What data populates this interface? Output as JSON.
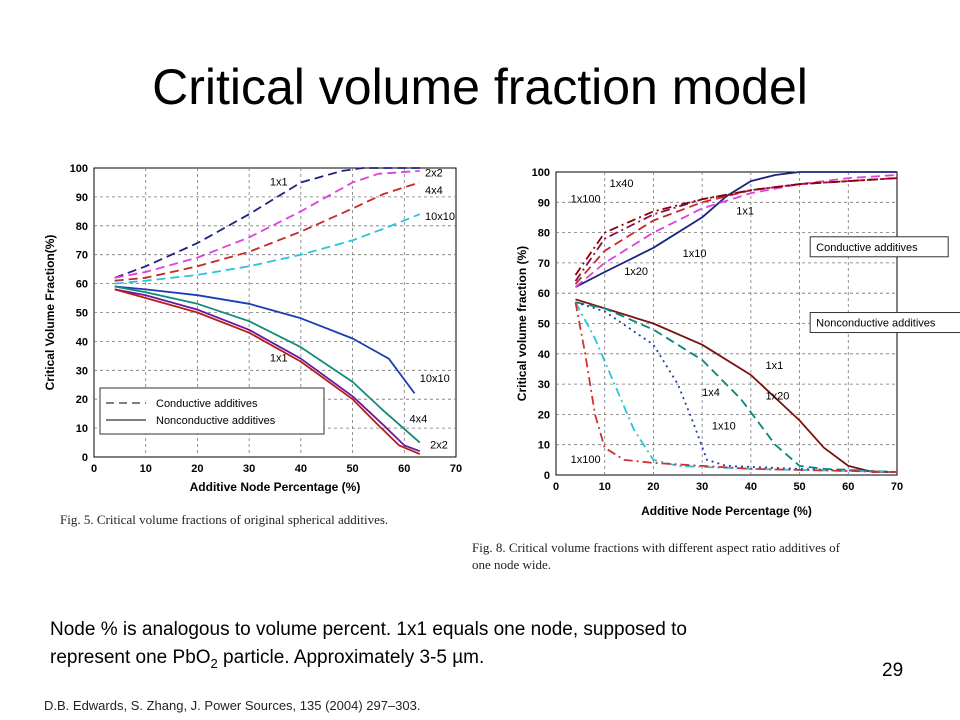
{
  "slide": {
    "title": "Critical volume fraction model",
    "body_line1": "Node % is analogous to volume percent. 1x1 equals one node, supposed to",
    "body_line2_pre": "represent one PbO",
    "body_line2_sub": "2",
    "body_line2_post": " particle.  Approximately 3-5 µm.",
    "page_number": "29",
    "citation": "D.B. Edwards, S. Zhang, J. Power Sources, 135 (2004) 297–303."
  },
  "chart_data": [
    {
      "type": "line",
      "caption": "Fig. 5. Critical volume fractions of original spherical additives.",
      "xlabel": "Additive Node Percentage (%)",
      "ylabel": "Critical Volume Fraction(%)",
      "xlim": [
        0,
        70
      ],
      "ylim": [
        0,
        100
      ],
      "xticks": [
        "0",
        "10",
        "20",
        "30",
        "40",
        "50",
        "60",
        "70"
      ],
      "yticks": [
        "0",
        "10",
        "20",
        "30",
        "40",
        "50",
        "60",
        "70",
        "80",
        "90",
        "100"
      ],
      "grid": true,
      "legend": {
        "position": "bottom-left",
        "entries": [
          {
            "label": "Conductive additives",
            "style": "dashed"
          },
          {
            "label": "Nonconductive additives",
            "style": "solid"
          }
        ]
      },
      "annotations": [
        {
          "text": "1x1",
          "x": 34,
          "y": 94
        },
        {
          "text": "2x2",
          "x": 64,
          "y": 97
        },
        {
          "text": "4x4",
          "x": 64,
          "y": 91
        },
        {
          "text": "10x10",
          "x": 64,
          "y": 82
        },
        {
          "text": "1x1",
          "x": 34,
          "y": 33
        },
        {
          "text": "10x10",
          "x": 63,
          "y": 26
        },
        {
          "text": "4x4",
          "x": 61,
          "y": 12
        },
        {
          "text": "2x2",
          "x": 65,
          "y": 3
        }
      ],
      "series": [
        {
          "label": "1x1",
          "group": "conductive",
          "color": "#1a237e",
          "dash": "dashed",
          "points": [
            [
              4,
              62
            ],
            [
              10,
              66
            ],
            [
              20,
              74
            ],
            [
              30,
              84
            ],
            [
              40,
              95
            ],
            [
              48,
              99
            ],
            [
              52,
              100
            ],
            [
              63,
              100
            ]
          ]
        },
        {
          "label": "2x2",
          "group": "conductive",
          "color": "#e040e0",
          "dash": "dashed",
          "points": [
            [
              4,
              62
            ],
            [
              10,
              64
            ],
            [
              20,
              69
            ],
            [
              30,
              76
            ],
            [
              40,
              85
            ],
            [
              50,
              95
            ],
            [
              55,
              98
            ],
            [
              63,
              99
            ]
          ]
        },
        {
          "label": "4x4",
          "group": "conductive",
          "color": "#c62828",
          "dash": "dashed",
          "points": [
            [
              4,
              61
            ],
            [
              10,
              62
            ],
            [
              20,
              66
            ],
            [
              30,
              71
            ],
            [
              40,
              78
            ],
            [
              50,
              86
            ],
            [
              56,
              91
            ],
            [
              63,
              95
            ]
          ]
        },
        {
          "label": "10x10",
          "group": "conductive",
          "color": "#26c6da",
          "dash": "dashed",
          "points": [
            [
              4,
              60
            ],
            [
              10,
              61
            ],
            [
              20,
              63
            ],
            [
              30,
              66
            ],
            [
              40,
              70
            ],
            [
              50,
              75
            ],
            [
              56,
              79
            ],
            [
              63,
              84
            ]
          ]
        },
        {
          "label": "10x10",
          "group": "nonconductive",
          "color": "#1e3cb4",
          "dash": "solid",
          "points": [
            [
              4,
              59
            ],
            [
              10,
              58
            ],
            [
              20,
              56
            ],
            [
              30,
              53
            ],
            [
              40,
              48
            ],
            [
              50,
              41
            ],
            [
              57,
              34
            ],
            [
              62,
              22
            ]
          ]
        },
        {
          "label": "4x4",
          "group": "nonconductive",
          "color": "#128a7a",
          "dash": "solid",
          "points": [
            [
              4,
              59
            ],
            [
              10,
              57
            ],
            [
              20,
              53
            ],
            [
              30,
              47
            ],
            [
              40,
              38
            ],
            [
              50,
              26
            ],
            [
              56,
              16
            ],
            [
              63,
              5
            ]
          ]
        },
        {
          "label": "2x2",
          "group": "nonconductive",
          "color": "#6a1b9a",
          "dash": "solid",
          "points": [
            [
              4,
              58
            ],
            [
              10,
              56
            ],
            [
              20,
              51
            ],
            [
              30,
              44
            ],
            [
              40,
              34
            ],
            [
              50,
              21
            ],
            [
              56,
              11
            ],
            [
              60,
              4
            ],
            [
              63,
              2
            ]
          ]
        },
        {
          "label": "1x1",
          "group": "nonconductive",
          "color": "#b71c1c",
          "dash": "solid",
          "points": [
            [
              4,
              58
            ],
            [
              10,
              55
            ],
            [
              20,
              50
            ],
            [
              30,
              43
            ],
            [
              40,
              33
            ],
            [
              50,
              20
            ],
            [
              55,
              11
            ],
            [
              59,
              4
            ],
            [
              63,
              1
            ]
          ]
        }
      ]
    },
    {
      "type": "line",
      "caption_line1": "Fig. 8. Critical volume fractions with different aspect ratio additives of",
      "caption_line2": "one node wide.",
      "xlabel": "Additive Node Percentage (%)",
      "ylabel": "Critical volume fraction (%)",
      "xlim": [
        0,
        70
      ],
      "ylim": [
        0,
        100
      ],
      "xticks": [
        "0",
        "10",
        "20",
        "30",
        "40",
        "50",
        "60",
        "70"
      ],
      "yticks": [
        "0",
        "10",
        "20",
        "30",
        "40",
        "50",
        "60",
        "70",
        "80",
        "90",
        "100"
      ],
      "grid": true,
      "legend_boxes": [
        {
          "label": "Conductive additives",
          "x": 53,
          "y": 74
        },
        {
          "label": "Nonconductive additives",
          "x": 53,
          "y": 49
        }
      ],
      "annotations": [
        {
          "text": "1x40",
          "x": 11,
          "y": 95
        },
        {
          "text": "1x100",
          "x": 3,
          "y": 90
        },
        {
          "text": "1x1",
          "x": 37,
          "y": 86
        },
        {
          "text": "1x10",
          "x": 26,
          "y": 72
        },
        {
          "text": "1x20",
          "x": 14,
          "y": 66
        },
        {
          "text": "1x1",
          "x": 43,
          "y": 35
        },
        {
          "text": "1x4",
          "x": 30,
          "y": 26
        },
        {
          "text": "1x20",
          "x": 43,
          "y": 25
        },
        {
          "text": "1x10",
          "x": 32,
          "y": 15
        },
        {
          "text": "1x100",
          "x": 3,
          "y": 4
        }
      ],
      "series": [
        {
          "label": "1x1",
          "group": "conductive",
          "color": "#1a237e",
          "dash": "solid",
          "points": [
            [
              4,
              62
            ],
            [
              10,
              67
            ],
            [
              20,
              75
            ],
            [
              30,
              85
            ],
            [
              35,
              92
            ],
            [
              40,
              97
            ],
            [
              45,
              99
            ],
            [
              50,
              100
            ],
            [
              70,
              100
            ]
          ]
        },
        {
          "label": "1x10",
          "group": "conductive",
          "color": "#e040e0",
          "dash": "dashed",
          "points": [
            [
              4,
              62
            ],
            [
              10,
              70
            ],
            [
              20,
              80
            ],
            [
              30,
              88
            ],
            [
              40,
              93
            ],
            [
              50,
              96
            ],
            [
              60,
              98
            ],
            [
              70,
              99
            ]
          ]
        },
        {
          "label": "1x20",
          "group": "conductive",
          "color": "#c62828",
          "dash": "dashed",
          "points": [
            [
              4,
              63
            ],
            [
              10,
              74
            ],
            [
              20,
              84
            ],
            [
              30,
              90
            ],
            [
              40,
              94
            ],
            [
              50,
              96
            ],
            [
              60,
              97
            ],
            [
              70,
              98
            ]
          ]
        },
        {
          "label": "1x40",
          "group": "conductive",
          "color": "#880e4f",
          "dash": "dashdot",
          "points": [
            [
              4,
              64
            ],
            [
              10,
              78
            ],
            [
              20,
              86
            ],
            [
              30,
              91
            ],
            [
              40,
              94
            ],
            [
              50,
              96
            ],
            [
              60,
              97
            ],
            [
              70,
              98
            ]
          ]
        },
        {
          "label": "1x100",
          "group": "conductive",
          "color": "#8b0000",
          "dash": "dashdot",
          "points": [
            [
              4,
              66
            ],
            [
              10,
              80
            ],
            [
              20,
              87
            ],
            [
              30,
              91
            ],
            [
              40,
              94
            ],
            [
              50,
              96
            ],
            [
              60,
              97
            ],
            [
              70,
              98
            ]
          ]
        },
        {
          "label": "1x1",
          "group": "nonconductive",
          "color": "#7b1111",
          "dash": "solid",
          "points": [
            [
              4,
              58
            ],
            [
              10,
              55
            ],
            [
              20,
              50
            ],
            [
              30,
              43
            ],
            [
              40,
              33
            ],
            [
              50,
              18
            ],
            [
              55,
              9
            ],
            [
              60,
              3
            ],
            [
              65,
              1
            ],
            [
              70,
              1
            ]
          ]
        },
        {
          "label": "1x20",
          "group": "nonconductive",
          "color": "#00897b",
          "dash": "dashed",
          "points": [
            [
              4,
              57
            ],
            [
              10,
              55
            ],
            [
              20,
              48
            ],
            [
              30,
              38
            ],
            [
              38,
              25
            ],
            [
              45,
              10
            ],
            [
              50,
              3
            ],
            [
              55,
              2
            ],
            [
              70,
              1
            ]
          ]
        },
        {
          "label": "1x10",
          "group": "nonconductive",
          "color": "#1e3cb4",
          "dash": "dotted",
          "points": [
            [
              4,
              57
            ],
            [
              10,
              54
            ],
            [
              20,
              43
            ],
            [
              25,
              30
            ],
            [
              28,
              18
            ],
            [
              31,
              5
            ],
            [
              35,
              3
            ],
            [
              50,
              2
            ],
            [
              70,
              1
            ]
          ]
        },
        {
          "label": "1x4",
          "group": "nonconductive",
          "color": "#26c6da",
          "dash": "dashdot",
          "points": [
            [
              4,
              57
            ],
            [
              8,
              45
            ],
            [
              12,
              30
            ],
            [
              16,
              15
            ],
            [
              20,
              5
            ],
            [
              25,
              3
            ],
            [
              40,
              2
            ],
            [
              70,
              1
            ]
          ]
        },
        {
          "label": "1x100",
          "group": "nonconductive",
          "color": "#d32f2f",
          "dash": "dashdot",
          "points": [
            [
              4,
              57
            ],
            [
              6,
              40
            ],
            [
              8,
              20
            ],
            [
              10,
              9
            ],
            [
              14,
              5
            ],
            [
              20,
              4
            ],
            [
              40,
              2
            ],
            [
              70,
              1
            ]
          ]
        }
      ]
    }
  ]
}
